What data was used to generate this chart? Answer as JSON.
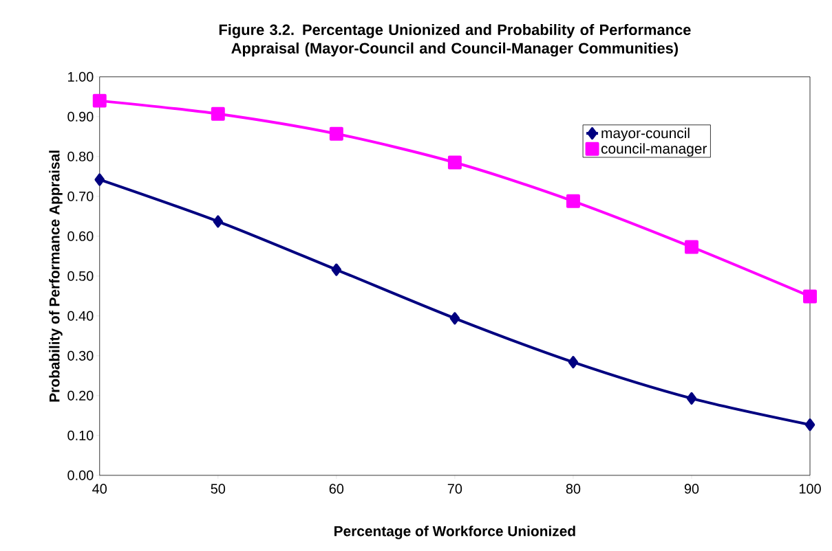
{
  "chart_data": {
    "type": "line",
    "title": "Figure 3.2. Percentage Unionized and Probability of Performance Appraisal (Mayor-Council and Council-Manager Communities)",
    "xlabel": "Percentage of Workforce Unionized",
    "ylabel": "Probability of Performance Appraisal",
    "x": [
      40,
      50,
      60,
      70,
      80,
      90,
      100
    ],
    "series": [
      {
        "name": "mayor-council",
        "color": "#000080",
        "marker": "diamond",
        "values": [
          0.742,
          0.637,
          0.516,
          0.394,
          0.284,
          0.193,
          0.127
        ]
      },
      {
        "name": "council-manager",
        "color": "#ff00ff",
        "marker": "square",
        "values": [
          0.94,
          0.907,
          0.857,
          0.785,
          0.688,
          0.573,
          0.449
        ]
      }
    ],
    "xlim": [
      40,
      100
    ],
    "xticks": [
      40,
      50,
      60,
      70,
      80,
      90,
      100
    ],
    "ylim": [
      0,
      1
    ],
    "yticks": [
      {
        "value": 0,
        "label": "0.00"
      },
      {
        "value": 0.1,
        "label": "0.10"
      },
      {
        "value": 0.2,
        "label": "0.20"
      },
      {
        "value": 0.3,
        "label": "0.30"
      },
      {
        "value": 0.4,
        "label": "0.40"
      },
      {
        "value": 0.5,
        "label": "0.50"
      },
      {
        "value": 0.6,
        "label": "0.60"
      },
      {
        "value": 0.7,
        "label": "0.70"
      },
      {
        "value": 0.8,
        "label": "0.80"
      },
      {
        "value": 0.9,
        "label": "0.90"
      },
      {
        "value": 1,
        "label": "1.00"
      }
    ],
    "legend": "top right",
    "grid": false,
    "line_style": "solid"
  }
}
